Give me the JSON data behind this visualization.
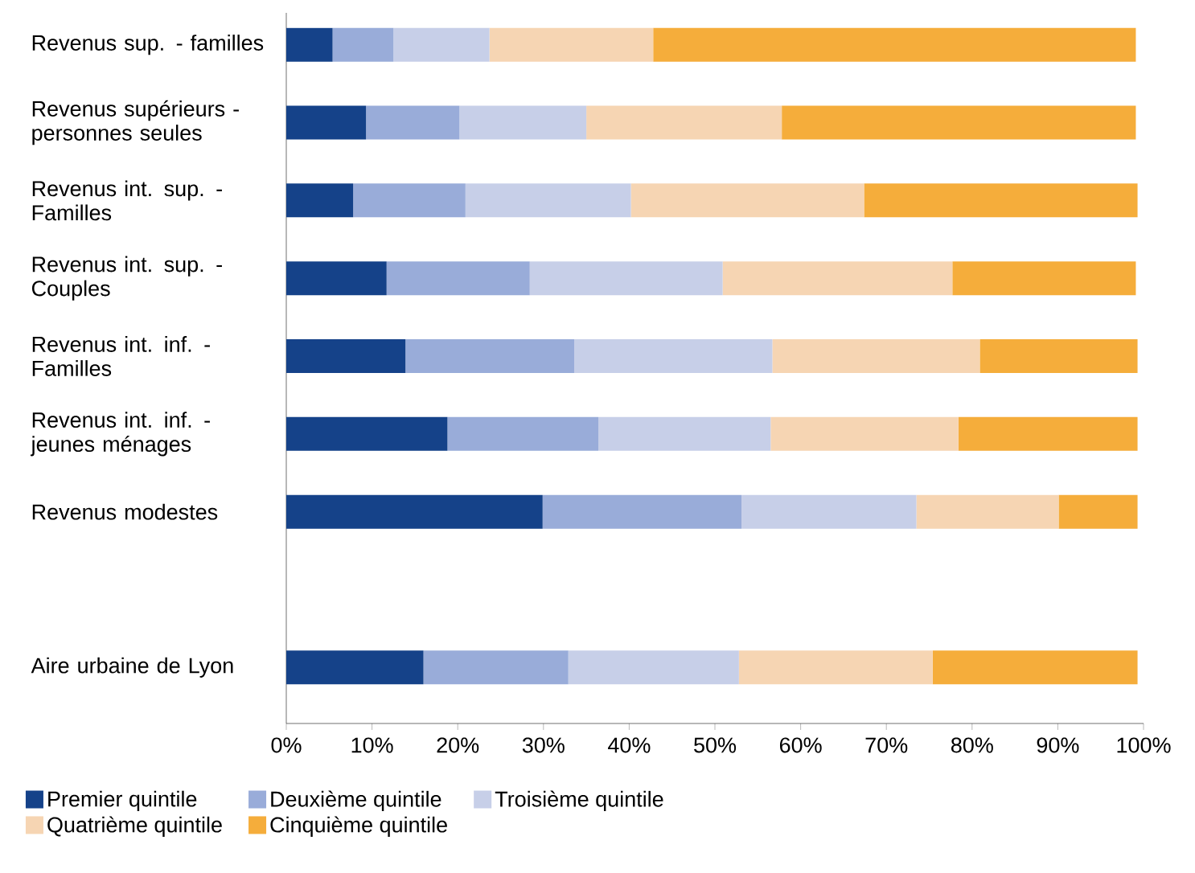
{
  "chart_data": {
    "type": "bar",
    "orientation": "horizontal",
    "stacked": true,
    "categories": [
      "Revenus sup. - familles",
      "Revenus supérieurs - personnes seules",
      "Revenus int. sup. - Familles",
      "Revenus int. sup. - Couples",
      "Revenus int. inf. - Familles",
      "Revenus int. inf. - jeunes ménages",
      "Revenus modestes",
      null,
      "Aire urbaine de Lyon"
    ],
    "series": [
      {
        "name": "Premier quintile",
        "color": "#154289",
        "values": [
          5.4,
          9.3,
          7.8,
          11.7,
          13.9,
          18.8,
          29.9,
          null,
          16.0
        ]
      },
      {
        "name": "Deuxième quintile",
        "color": "#99acd9",
        "values": [
          7.1,
          10.9,
          13.1,
          16.7,
          19.7,
          17.6,
          23.2,
          null,
          16.9
        ]
      },
      {
        "name": "Troisième quintile",
        "color": "#c7cfe8",
        "values": [
          11.2,
          14.8,
          19.3,
          22.5,
          23.1,
          20.1,
          20.4,
          null,
          19.9
        ]
      },
      {
        "name": "Quatrième quintile",
        "color": "#f6d5b3",
        "values": [
          19.1,
          22.8,
          27.2,
          26.8,
          24.2,
          21.9,
          16.6,
          null,
          22.6
        ]
      },
      {
        "name": "Cinquième quintile",
        "color": "#f5ad3b",
        "values": [
          56.3,
          41.3,
          31.9,
          21.4,
          18.4,
          20.9,
          9.2,
          null,
          23.9
        ]
      }
    ],
    "xlim": [
      0,
      100
    ],
    "xticks": [
      {
        "value": 0,
        "label": "0%"
      },
      {
        "value": 10,
        "label": "10%"
      },
      {
        "value": 20,
        "label": "20%"
      },
      {
        "value": 30,
        "label": "30%"
      },
      {
        "value": 40,
        "label": "40%"
      },
      {
        "value": 50,
        "label": "50%"
      },
      {
        "value": 60,
        "label": "60%"
      },
      {
        "value": 70,
        "label": "70%"
      },
      {
        "value": 80,
        "label": "80%"
      },
      {
        "value": 90,
        "label": "90%"
      },
      {
        "value": 100,
        "label": "100%"
      }
    ],
    "legend": "bottom",
    "grid": false
  }
}
